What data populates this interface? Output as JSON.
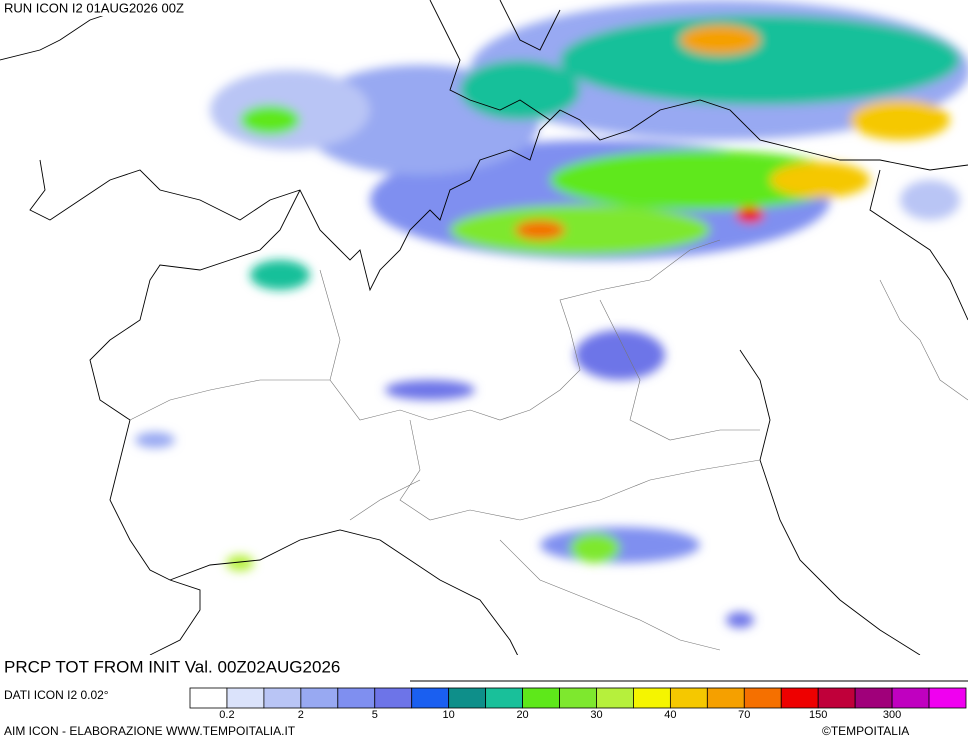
{
  "header": {
    "run": "RUN ICON I2 01AUG2026 00Z"
  },
  "footer": {
    "product": "PRCP TOT FROM INIT Val. 00Z02AUG2026",
    "source": "DATI ICON I2 0.02°",
    "credit": "AIM ICON - ELABORAZIONE WWW.TEMPOITALIA.IT",
    "copyright": "©TEMPOITALIA"
  },
  "legend": {
    "labels": [
      "0.2",
      "2",
      "5",
      "10",
      "20",
      "30",
      "40",
      "70",
      "150",
      "300"
    ],
    "colors": [
      "#ffffff",
      "#dbe3fb",
      "#b9c5f5",
      "#98a9f2",
      "#7f8ff0",
      "#6d74e8",
      "#1a5ff0",
      "#0e8f8a",
      "#19c09a",
      "#5ee81a",
      "#7ee82e",
      "#b6f03c",
      "#f5f500",
      "#f5c800",
      "#f5a000",
      "#f57000",
      "#ee0000",
      "#c0003a",
      "#a0007a",
      "#c000c0",
      "#f000f0"
    ]
  }
}
